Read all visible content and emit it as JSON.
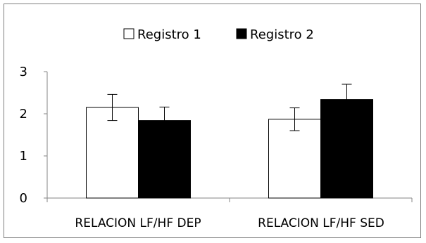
{
  "chart_data": {
    "type": "bar",
    "categories": [
      "RELACION LF/HF DEP",
      "RELACION LF/HF SED"
    ],
    "series": [
      {
        "name": "Registro 1",
        "values": [
          2.15,
          1.87
        ],
        "error": [
          0.31,
          0.27
        ],
        "color": "#ffffff"
      },
      {
        "name": "Registro 2",
        "values": [
          1.84,
          2.34
        ],
        "error": [
          0.32,
          0.36
        ],
        "color": "#000000"
      }
    ],
    "ylim": [
      0,
      3
    ],
    "yticks": [
      "0",
      "1",
      "2",
      "3"
    ],
    "legend_position": "top-center",
    "grid": false
  }
}
